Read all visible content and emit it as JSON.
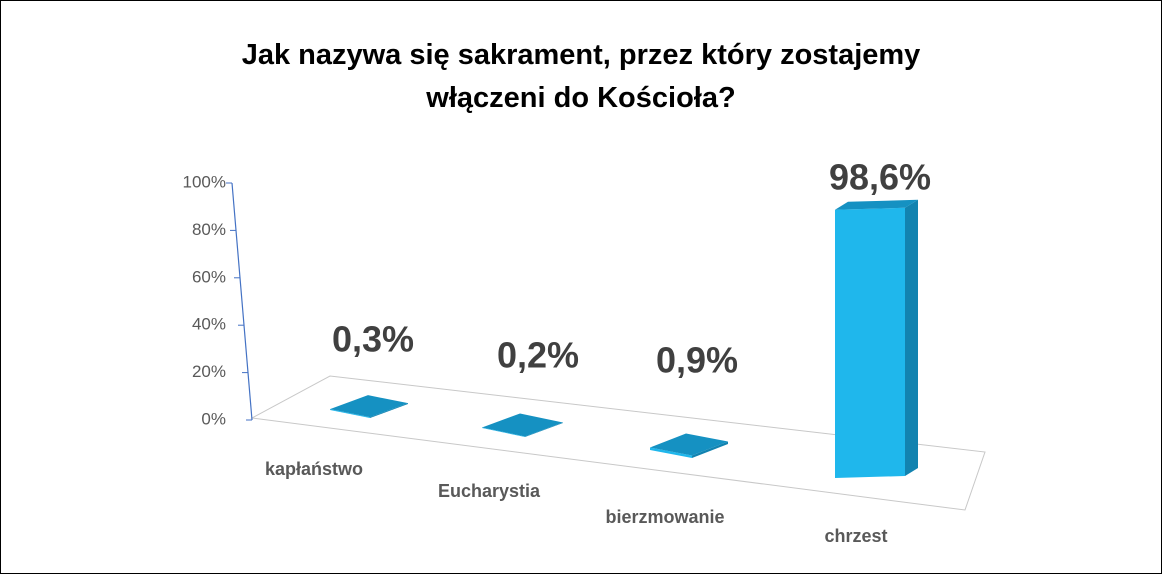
{
  "chart_data": {
    "type": "bar3d",
    "title": "Jak nazywa się sakrament, przez który zostajemy włączeni do Kościoła?",
    "categories": [
      "kapłaństwo",
      "Eucharystia",
      "bierzmowanie",
      "chrzest"
    ],
    "values": [
      0.3,
      0.2,
      0.9,
      98.6
    ],
    "value_labels": [
      "0,3%",
      "0,2%",
      "0,9%",
      "98,6%"
    ],
    "color": "#1fb7ec",
    "ylim": [
      0,
      100
    ],
    "yticks": [
      {
        "value": 0,
        "label": "0%"
      },
      {
        "value": 20,
        "label": "20%"
      },
      {
        "value": 40,
        "label": "40%"
      },
      {
        "value": 60,
        "label": "60%"
      },
      {
        "value": 80,
        "label": "80%"
      },
      {
        "value": 100,
        "label": "100%"
      }
    ]
  }
}
